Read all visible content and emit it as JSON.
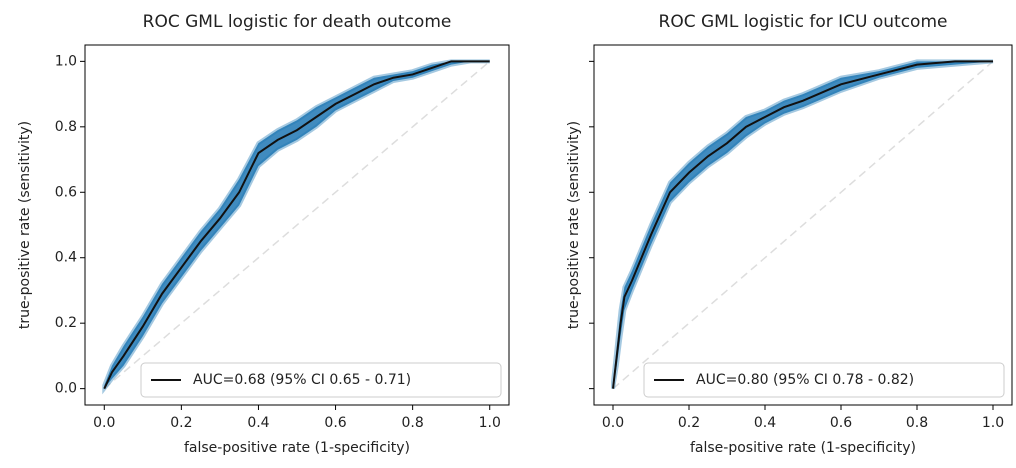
{
  "chart_data": [
    {
      "type": "line",
      "title": "ROC GML logistic for death outcome",
      "xlabel": "false-positive rate (1-specificity)",
      "ylabel": "true-positive rate (sensitivity)",
      "xlim": [
        -0.05,
        1.05
      ],
      "ylim": [
        -0.05,
        1.05
      ],
      "xticks": [
        {
          "value": 0,
          "label": "0.0"
        },
        0.2,
        0.4,
        0.6,
        0.8,
        {
          "value": 1,
          "label": "1.0"
        }
      ],
      "yticks": [
        {
          "value": 0,
          "label": "0.0"
        },
        0.2,
        0.4,
        0.6,
        0.8,
        {
          "value": 1,
          "label": "1.0"
        }
      ],
      "x": [
        0,
        0.02,
        0.05,
        0.1,
        0.15,
        0.2,
        0.25,
        0.3,
        0.35,
        0.4,
        0.45,
        0.5,
        0.55,
        0.6,
        0.65,
        0.7,
        0.75,
        0.8,
        0.85,
        0.9,
        0.95,
        1.0
      ],
      "band": {
        "color": "#1f77b4",
        "lower": [
          0,
          0.03,
          0.07,
          0.16,
          0.26,
          0.34,
          0.42,
          0.49,
          0.56,
          0.68,
          0.73,
          0.76,
          0.8,
          0.85,
          0.88,
          0.91,
          0.94,
          0.95,
          0.97,
          0.99,
          1.0,
          1.0
        ],
        "upper": [
          0.01,
          0.07,
          0.13,
          0.22,
          0.32,
          0.4,
          0.48,
          0.55,
          0.64,
          0.75,
          0.79,
          0.82,
          0.86,
          0.89,
          0.92,
          0.95,
          0.96,
          0.97,
          0.99,
          1.0,
          1.0,
          1.0
        ]
      },
      "series": [
        {
          "name": "AUC=0.68 (95% CI 0.65 - 0.71)",
          "color": "#111111",
          "values": [
            0,
            0.05,
            0.1,
            0.19,
            0.29,
            0.37,
            0.45,
            0.52,
            0.6,
            0.72,
            0.76,
            0.79,
            0.83,
            0.87,
            0.9,
            0.93,
            0.95,
            0.96,
            0.98,
            1.0,
            1.0,
            1.0
          ]
        }
      ],
      "legend": "lower right"
    },
    {
      "type": "line",
      "title": "ROC GML logistic for ICU outcome",
      "xlabel": "false-positive rate (1-specificity)",
      "ylabel": "true-positive rate (sensitivity)",
      "xlim": [
        -0.05,
        1.05
      ],
      "ylim": [
        -0.05,
        1.05
      ],
      "xticks": [
        {
          "value": 0,
          "label": "0.0"
        },
        0.2,
        0.4,
        0.6,
        0.8,
        {
          "value": 1,
          "label": "1.0"
        }
      ],
      "yticks": [
        0,
        0.2,
        0.4,
        0.6,
        0.8,
        1
      ],
      "x": [
        0,
        0.01,
        0.02,
        0.03,
        0.05,
        0.1,
        0.15,
        0.2,
        0.25,
        0.3,
        0.35,
        0.4,
        0.45,
        0.5,
        0.6,
        0.7,
        0.8,
        0.9,
        1.0
      ],
      "band": {
        "color": "#1f77b4",
        "lower": [
          0,
          0.07,
          0.16,
          0.24,
          0.3,
          0.44,
          0.57,
          0.63,
          0.68,
          0.72,
          0.77,
          0.81,
          0.84,
          0.86,
          0.91,
          0.95,
          0.98,
          0.99,
          1.0
        ],
        "upper": [
          0.02,
          0.13,
          0.24,
          0.31,
          0.36,
          0.5,
          0.63,
          0.69,
          0.74,
          0.78,
          0.83,
          0.85,
          0.88,
          0.9,
          0.95,
          0.97,
          1.0,
          1.0,
          1.0
        ]
      },
      "series": [
        {
          "name": "AUC=0.80 (95% CI 0.78 - 0.82)",
          "color": "#111111",
          "values": [
            0,
            0.1,
            0.2,
            0.28,
            0.33,
            0.47,
            0.6,
            0.66,
            0.71,
            0.75,
            0.8,
            0.83,
            0.86,
            0.88,
            0.93,
            0.96,
            0.99,
            1.0,
            1.0
          ]
        }
      ],
      "legend": "lower right"
    }
  ]
}
